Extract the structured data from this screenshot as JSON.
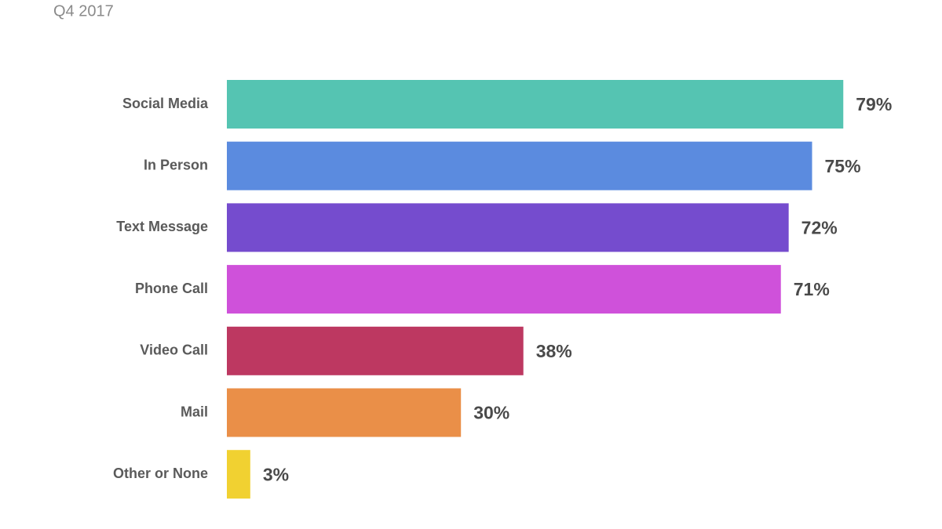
{
  "chart_data": {
    "type": "bar",
    "orientation": "horizontal",
    "title": "Q4 2017",
    "categories": [
      "Social Media",
      "In Person",
      "Text Message",
      "Phone Call",
      "Video Call",
      "Mail",
      "Other or None"
    ],
    "values": [
      79,
      75,
      72,
      71,
      38,
      30,
      3
    ],
    "value_labels": [
      "79%",
      "75%",
      "72%",
      "71%",
      "38%",
      "30%",
      "3%"
    ],
    "colors": [
      "#55c4b2",
      "#5b8bdf",
      "#754cce",
      "#cf51da",
      "#bd3861",
      "#ea8f48",
      "#f1d131"
    ]
  }
}
